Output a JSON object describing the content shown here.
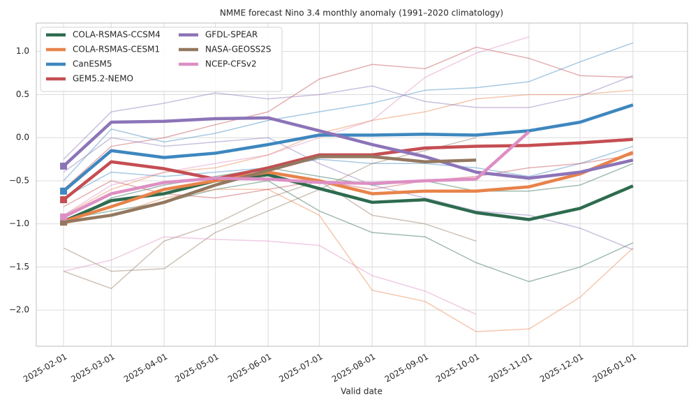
{
  "chart_data": {
    "type": "line",
    "title": "NMME forecast Nino 3.4 monthly anomaly (1991–2020 climatology)",
    "x_label": "Valid date",
    "x": [
      "2025-02-01",
      "2025-03-01",
      "2025-04-01",
      "2025-05-01",
      "2025-06-01",
      "2025-07-01",
      "2025-08-01",
      "2025-09-01",
      "2025-10-01",
      "2025-11-01",
      "2025-12-01",
      "2026-01-01"
    ],
    "xlim": [
      "2025-01-16",
      "2026-02-02"
    ],
    "ylim": [
      -2.42,
      1.33
    ],
    "yticks": [
      {
        "value": -2.0,
        "label": "−2.0"
      },
      {
        "value": -1.5,
        "label": "−1.5"
      },
      {
        "value": -1.0,
        "label": "−1.0"
      },
      {
        "value": -0.5,
        "label": "−0.5"
      },
      {
        "value": 0.0,
        "label": "0.0"
      },
      {
        "value": 0.5,
        "label": "0.5"
      },
      {
        "value": 1.0,
        "label": "1.0"
      }
    ],
    "grid": true,
    "legend": "upper left",
    "series": [
      {
        "name": "COLA-RSMAS-CCSM4",
        "color": "#2e6b4f",
        "values": [
          -0.97,
          -0.73,
          -0.65,
          -0.5,
          -0.43,
          -0.59,
          -0.75,
          -0.72,
          -0.87,
          -0.95,
          -0.82,
          -0.56
        ]
      },
      {
        "name": "COLA-RSMAS-CESM1",
        "color": "#e8834a",
        "values": [
          -0.97,
          -0.8,
          -0.6,
          -0.5,
          -0.4,
          -0.5,
          -0.65,
          -0.62,
          -0.62,
          -0.57,
          -0.42,
          -0.17
        ]
      },
      {
        "name": "CanESM5",
        "color": "#3e87bf",
        "values": [
          -0.62,
          -0.15,
          -0.23,
          -0.18,
          -0.08,
          0.03,
          0.03,
          0.04,
          0.03,
          0.08,
          0.18,
          0.38
        ]
      },
      {
        "name": "GEM5.2-NEMO",
        "color": "#c44e52",
        "values": [
          -0.72,
          -0.28,
          -0.36,
          -0.48,
          -0.35,
          -0.2,
          -0.2,
          -0.12,
          -0.1,
          -0.09,
          -0.06,
          -0.02
        ]
      },
      {
        "name": "GFDL-SPEAR",
        "color": "#8c74b8",
        "values": [
          -0.33,
          0.18,
          0.19,
          0.22,
          0.23,
          0.08,
          -0.08,
          -0.22,
          -0.4,
          -0.47,
          -0.4,
          -0.26
        ]
      },
      {
        "name": "NASA-GEOSS2S",
        "color": "#937860",
        "values": [
          -0.98,
          -0.9,
          -0.75,
          -0.55,
          -0.38,
          -0.22,
          -0.22,
          -0.28,
          -0.26,
          null,
          null,
          null
        ]
      },
      {
        "name": "NCEP-CFSv2",
        "color": "#dd8fc4",
        "values": [
          -0.92,
          -0.65,
          -0.52,
          -0.47,
          -0.48,
          -0.52,
          -0.53,
          -0.5,
          -0.48,
          0.07,
          null,
          null
        ]
      }
    ],
    "members": [
      {
        "color": "#2e6b4f",
        "values": [
          -0.95,
          -0.85,
          -0.75,
          -0.6,
          -0.5,
          -0.85,
          -1.1,
          -1.15,
          -1.45,
          -1.67,
          -1.5,
          -1.22
        ]
      },
      {
        "color": "#2e6b4f",
        "values": [
          -1.0,
          -0.7,
          -0.55,
          -0.45,
          -0.35,
          -0.45,
          -0.55,
          -0.5,
          -0.62,
          -0.62,
          -0.55,
          -0.3
        ]
      },
      {
        "color": "#e8834a",
        "values": [
          -1.0,
          -0.9,
          -0.7,
          -0.6,
          -0.6,
          -0.9,
          -1.77,
          -1.9,
          -2.25,
          -2.22,
          -1.85,
          -1.28
        ]
      },
      {
        "color": "#e8834a",
        "values": [
          -0.9,
          -0.6,
          -0.4,
          -0.35,
          -0.2,
          0.05,
          0.2,
          0.3,
          0.45,
          0.5,
          0.5,
          0.55
        ]
      },
      {
        "color": "#3e87bf",
        "values": [
          -0.5,
          0.1,
          -0.05,
          0.05,
          0.2,
          0.3,
          0.4,
          0.55,
          0.58,
          0.65,
          0.88,
          1.1
        ]
      },
      {
        "color": "#3e87bf",
        "values": [
          -0.7,
          -0.4,
          -0.45,
          -0.4,
          -0.35,
          -0.25,
          -0.3,
          -0.3,
          -0.35,
          -0.45,
          -0.3,
          -0.1
        ]
      },
      {
        "color": "#c44e52",
        "values": [
          -0.6,
          -0.1,
          0.0,
          0.15,
          0.3,
          0.68,
          0.85,
          0.8,
          1.05,
          0.92,
          0.72,
          0.7
        ]
      },
      {
        "color": "#c44e52",
        "values": [
          -0.8,
          -0.5,
          -0.65,
          -0.7,
          -0.6,
          -0.5,
          -0.6,
          -0.5,
          -0.45,
          -0.35,
          -0.3,
          -0.2
        ]
      },
      {
        "color": "#8c74b8",
        "values": [
          -0.25,
          0.3,
          0.4,
          0.52,
          0.45,
          0.5,
          0.6,
          0.42,
          0.35,
          0.35,
          0.48,
          0.72
        ]
      },
      {
        "color": "#8c74b8",
        "values": [
          -0.4,
          0.0,
          -0.1,
          -0.05,
          0.0,
          -0.3,
          -0.55,
          -0.7,
          -0.85,
          -0.9,
          -1.05,
          -1.3
        ]
      },
      {
        "color": "#937860",
        "values": [
          -1.55,
          -1.75,
          -1.2,
          -1.0,
          -0.7,
          -0.5,
          -0.9,
          -1.0,
          -1.2,
          null,
          null,
          null
        ]
      },
      {
        "color": "#937860",
        "values": [
          -1.28,
          -1.55,
          -1.52,
          -1.1,
          -0.85,
          -0.6,
          -0.3,
          -0.15,
          0.0,
          null,
          null,
          null
        ]
      },
      {
        "color": "#dd8fc4",
        "values": [
          -1.55,
          -1.42,
          -1.15,
          -1.18,
          -1.2,
          -1.25,
          -1.6,
          -1.78,
          -2.05,
          null,
          null,
          null
        ]
      },
      {
        "color": "#dd8fc4",
        "values": [
          -0.9,
          -0.55,
          -0.4,
          -0.3,
          -0.2,
          0.0,
          0.2,
          0.7,
          0.98,
          1.17,
          null,
          null
        ]
      }
    ]
  }
}
